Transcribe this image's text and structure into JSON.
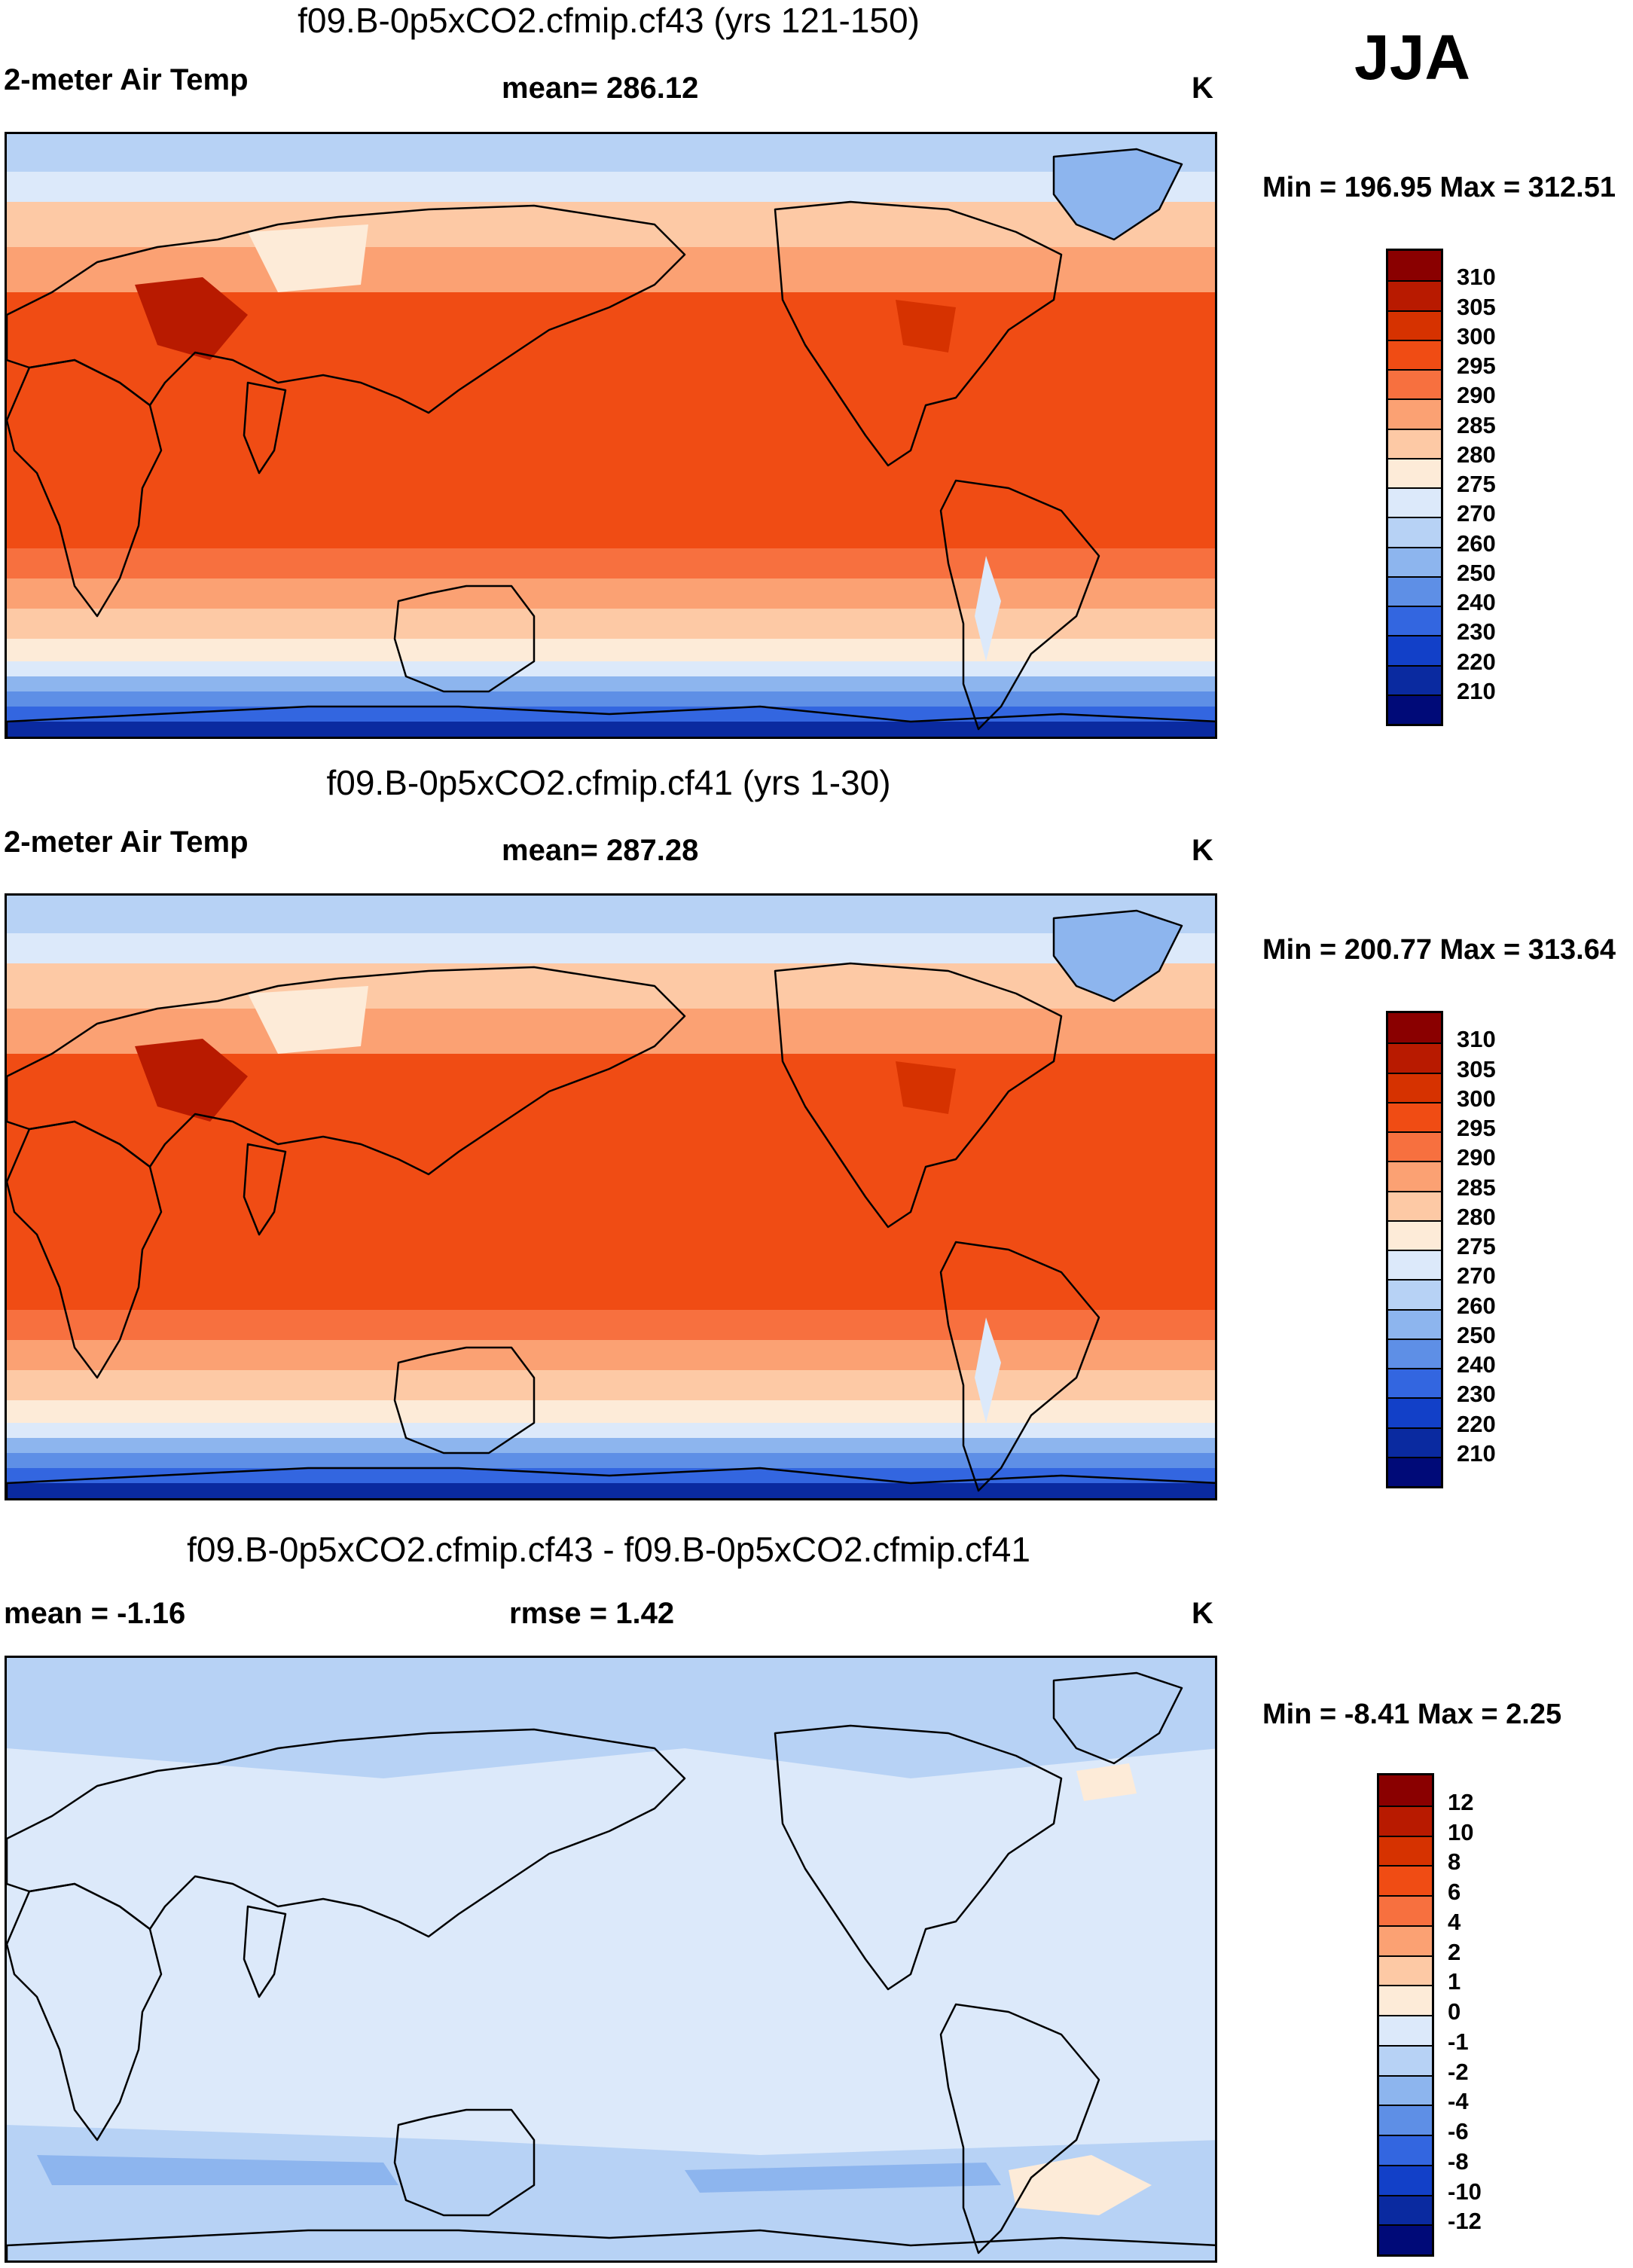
{
  "season": "JJA",
  "panels": [
    {
      "id": "top",
      "title": "f09.B-0p5xCO2.cfmip.cf43 (yrs 121-150)",
      "left_label": "2-meter Air Temp",
      "center_label": "mean= 286.12",
      "units": "K",
      "minmax": "Min = 196.95 Max = 312.51"
    },
    {
      "id": "middle",
      "title": "f09.B-0p5xCO2.cfmip.cf41 (yrs 1-30)",
      "left_label": "2-meter Air Temp",
      "center_label": "mean= 287.28",
      "units": "K",
      "minmax": "Min = 200.77 Max = 313.64"
    },
    {
      "id": "bottom",
      "title": "f09.B-0p5xCO2.cfmip.cf43 - f09.B-0p5xCO2.cfmip.cf41",
      "left_label": "mean =  -1.16",
      "center_label": "rmse =   1.42",
      "units": "K",
      "minmax": "Min =  -8.41 Max =   2.25"
    }
  ],
  "chart_data": [
    {
      "type": "heatmap",
      "title": "f09.B-0p5xCO2.cfmip.cf43 (yrs 121-150)",
      "variable": "2-meter Air Temp",
      "units": "K",
      "mean": 286.12,
      "min": 196.95,
      "max": 312.51,
      "colorbar_levels": [
        "310",
        "305",
        "300",
        "295",
        "290",
        "285",
        "280",
        "275",
        "270",
        "260",
        "250",
        "240",
        "230",
        "220",
        "210"
      ],
      "colorbar_colors": [
        "#8a0000",
        "#b81a00",
        "#d63200",
        "#f04c14",
        "#f7703f",
        "#fba173",
        "#fdc9a5",
        "#fdebd8",
        "#dce9fa",
        "#b7d2f5",
        "#8db5ee",
        "#5e8fe6",
        "#3366e0",
        "#1240c8",
        "#0a2aa0",
        "#000a78"
      ]
    },
    {
      "type": "heatmap",
      "title": "f09.B-0p5xCO2.cfmip.cf41 (yrs 1-30)",
      "variable": "2-meter Air Temp",
      "units": "K",
      "mean": 287.28,
      "min": 200.77,
      "max": 313.64,
      "colorbar_levels": [
        "310",
        "305",
        "300",
        "295",
        "290",
        "285",
        "280",
        "275",
        "270",
        "260",
        "250",
        "240",
        "230",
        "220",
        "210"
      ],
      "colorbar_colors": [
        "#8a0000",
        "#b81a00",
        "#d63200",
        "#f04c14",
        "#f7703f",
        "#fba173",
        "#fdc9a5",
        "#fdebd8",
        "#dce9fa",
        "#b7d2f5",
        "#8db5ee",
        "#5e8fe6",
        "#3366e0",
        "#1240c8",
        "#0a2aa0",
        "#000a78"
      ]
    },
    {
      "type": "heatmap",
      "title": "f09.B-0p5xCO2.cfmip.cf43 - f09.B-0p5xCO2.cfmip.cf41",
      "units": "K",
      "mean": -1.16,
      "rmse": 1.42,
      "min": -8.41,
      "max": 2.25,
      "colorbar_levels": [
        "12",
        "10",
        "8",
        "6",
        "4",
        "2",
        "1",
        "0",
        "-1",
        "-2",
        "-4",
        "-6",
        "-8",
        "-10",
        "-12"
      ],
      "colorbar_colors": [
        "#8a0000",
        "#b81a00",
        "#d63200",
        "#f04c14",
        "#f7703f",
        "#fba173",
        "#fdc9a5",
        "#fdebd8",
        "#dce9fa",
        "#b7d2f5",
        "#8db5ee",
        "#5e8fe6",
        "#3366e0",
        "#1240c8",
        "#0a2aa0",
        "#000a78"
      ]
    }
  ]
}
